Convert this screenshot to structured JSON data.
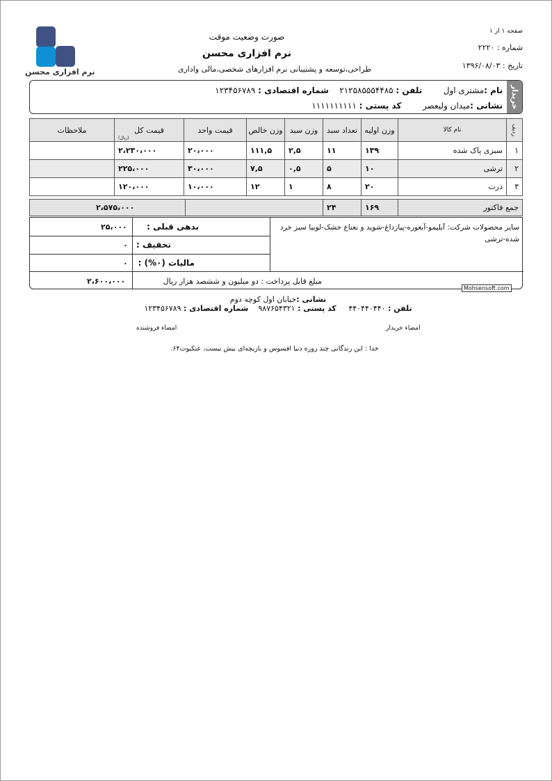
{
  "logo": {
    "text": "نرم افزاری محسن",
    "colors": [
      "#3f5283",
      "#0e8fd6"
    ]
  },
  "header": {
    "doc_type": "صورت وضعیت موقت",
    "company": "نرم افزاری محسن",
    "tagline": "طراحی،توسعه و پشتیبانی نرم افزارهای شخصی،مالی واداری"
  },
  "meta": {
    "page": "صفحه ۱ از ۱",
    "number": "شماره : ۲۲۲۰",
    "date": "تاریخ : ۱۳۹۶/۰۸/۰۳"
  },
  "buyer": {
    "side_label": "خریدار",
    "name_label": "نام :",
    "name": "مشتری اول",
    "phone_label": "تلفن :",
    "phone": "۲۱۲۵۸۵۵۵۴۴۸۵",
    "econ_label": "شماره اقتصادی :",
    "econ": "۱۲۳۴۵۶۷۸۹",
    "address_label": "نشانی :",
    "address": "میدان ولیعصر",
    "postal_label": "کد پستی :",
    "postal": "۱۱۱۱۱۱۱۱۱۱"
  },
  "table": {
    "headers": [
      "ردیف",
      "نام کالا",
      "وزن اولیه",
      "تعداد سبد",
      "وزن سبد",
      "وزن خالص",
      "قیمت واحد",
      "قیمت کل",
      "ملاحظات"
    ],
    "currency_note": "(ریال)",
    "rows": [
      [
        "۱",
        "سبزی پاک شده",
        "۱۳۹",
        "۱۱",
        "۲,۵",
        "۱۱۱,۵",
        "۲۰،۰۰۰",
        "۲،۲۳۰،۰۰۰",
        ""
      ],
      [
        "۲",
        "ترشی",
        "۱۰",
        "۵",
        "۰,۵",
        "۷,۵",
        "۳۰،۰۰۰",
        "۲۲۵،۰۰۰",
        ""
      ],
      [
        "۳",
        "ذرت",
        "۲۰",
        "۸",
        "۱",
        "۱۲",
        "۱۰،۰۰۰",
        "۱۲۰،۰۰۰",
        ""
      ]
    ]
  },
  "totals": {
    "label": "جمع فاکتور",
    "initial_weight": "۱۶۹",
    "baskets": "۲۴",
    "total": "۲،۵۷۵،۰۰۰",
    "prev_debt_label": "بدهی قبلی :",
    "prev_debt": "۲۵،۰۰۰",
    "discount_label": "تخفیف :",
    "discount": "۰",
    "tax_label": "مالیات (۰%) :",
    "tax": "۰",
    "notes": "سایر محصولات شرکت: آبلیمو-آبغوره-پیازداغ-شوید و نعناع خشک-لوبیا سبز خرد شده-ترشی",
    "payable_label": "مبلغ قابل پرداخت : دو میلیون و ششصد هزار  ریال",
    "payable": "۲،۶۰۰،۰۰۰",
    "watermark": "Mohsensoft.com"
  },
  "footer": {
    "address_label": "نشانی :",
    "address": "خیابان اول کوچه دوم",
    "phone_label": "تلفن :",
    "phone": "۴۴۰۴۴۰۴۴۰",
    "postal_label": "کد پستی :",
    "postal": "۹۸۷۶۵۴۳۲۱",
    "econ_label": "شماره اقتصادی :",
    "econ": "۱۲۳۴۵۶۷۸۹",
    "buyer_sign": "امضاء خریدار",
    "seller_sign": "امضاء فروشنده",
    "quote": "خدا : این زندگانی چند روزه دنیا افسوس و بازیچه‌ای بیش نیست، عنکبوت۶۴."
  }
}
